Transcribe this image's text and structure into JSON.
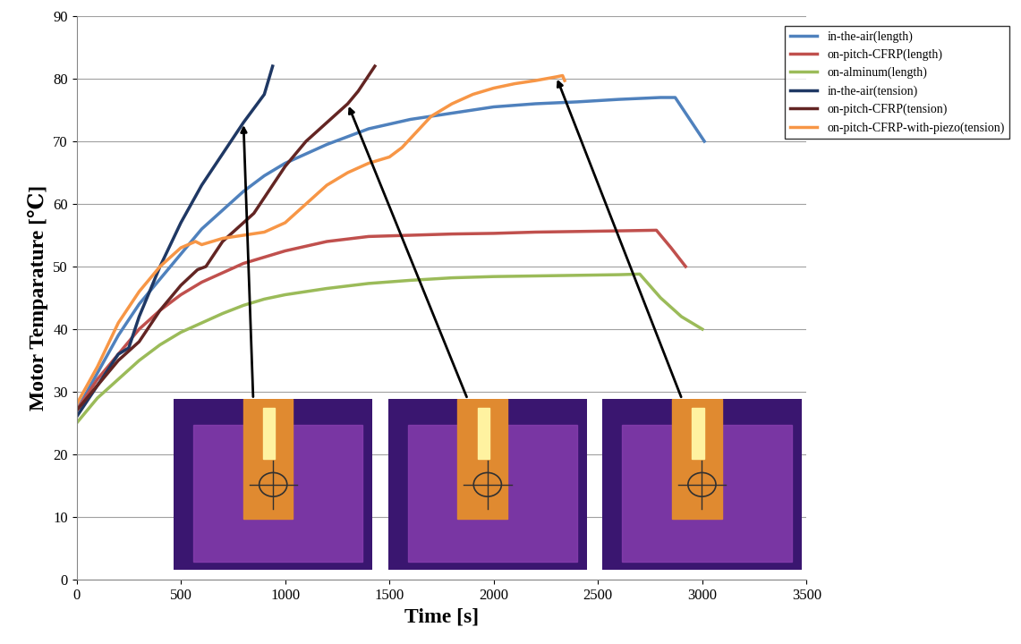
{
  "chart_data": {
    "type": "line",
    "x_label": "Time [s]",
    "y_label": "Motor Temparature [℃]",
    "xlim": [
      0,
      3500
    ],
    "xticks": [
      0,
      500,
      1000,
      1500,
      2000,
      2500,
      3000,
      3500
    ],
    "ylim": [
      0,
      90
    ],
    "yticks": [
      0,
      10,
      20,
      30,
      40,
      50,
      60,
      70,
      80,
      90
    ],
    "grid": true,
    "legend": "upper right",
    "series": [
      {
        "name": "in-the-air(length)",
        "color": "#4f81bd",
        "x": [
          0,
          100,
          200,
          300,
          400,
          500,
          600,
          700,
          800,
          900,
          1000,
          1200,
          1400,
          1600,
          1800,
          2000,
          2200,
          2400,
          2600,
          2800,
          2870,
          2950,
          3010
        ],
        "values": [
          27,
          33,
          39,
          44,
          48,
          52,
          56,
          59,
          62,
          64.5,
          66.5,
          69.5,
          72,
          73.5,
          74.5,
          75.5,
          76,
          76.3,
          76.7,
          77,
          77,
          73,
          70
        ]
      },
      {
        "name": "on-pitch-CFRP(length)",
        "color": "#c0504d",
        "x": [
          0,
          100,
          200,
          300,
          400,
          500,
          600,
          700,
          800,
          900,
          1000,
          1200,
          1400,
          1600,
          1800,
          2000,
          2200,
          2400,
          2600,
          2780,
          2850,
          2920
        ],
        "values": [
          27,
          32,
          36,
          40,
          43,
          45.5,
          47.5,
          49,
          50.5,
          51.5,
          52.5,
          54,
          54.8,
          55,
          55.2,
          55.3,
          55.5,
          55.6,
          55.7,
          55.8,
          53,
          50
        ]
      },
      {
        "name": "on-alminum(length)",
        "color": "#9bbb59",
        "x": [
          0,
          100,
          200,
          300,
          400,
          500,
          600,
          700,
          800,
          900,
          1000,
          1200,
          1400,
          1600,
          1800,
          2000,
          2200,
          2400,
          2600,
          2700,
          2800,
          2900,
          3000
        ],
        "values": [
          25,
          29,
          32,
          35,
          37.5,
          39.5,
          41,
          42.5,
          43.8,
          44.8,
          45.5,
          46.5,
          47.3,
          47.8,
          48.2,
          48.4,
          48.5,
          48.6,
          48.7,
          48.8,
          45,
          42,
          40
        ]
      },
      {
        "name": "in-the-air(tension)",
        "color": "#1f3864",
        "x": [
          0,
          100,
          200,
          250,
          300,
          400,
          500,
          600,
          700,
          800,
          900,
          940
        ],
        "values": [
          26,
          31,
          36,
          37,
          42,
          50,
          57,
          63,
          68,
          73,
          77.5,
          82
        ]
      },
      {
        "name": "on-pitch-CFRP(tension)",
        "color": "#632523",
        "x": [
          0,
          100,
          200,
          300,
          400,
          500,
          580,
          620,
          700,
          800,
          850,
          900,
          1000,
          1100,
          1200,
          1300,
          1350,
          1430
        ],
        "values": [
          27,
          31,
          35,
          38,
          43,
          47,
          49.5,
          50,
          54,
          57,
          58.5,
          61,
          66,
          70,
          73,
          76,
          78,
          82
        ]
      },
      {
        "name": "on-pitch-CFRP-with-piezo(tension)",
        "color": "#f79646",
        "x": [
          0,
          100,
          200,
          300,
          400,
          500,
          570,
          600,
          700,
          800,
          900,
          1000,
          1100,
          1200,
          1300,
          1400,
          1500,
          1560,
          1700,
          1800,
          1900,
          2000,
          2100,
          2200,
          2300,
          2330,
          2340
        ],
        "values": [
          28,
          34,
          41,
          46,
          50,
          53,
          54,
          53.5,
          54.5,
          55,
          55.5,
          57,
          60,
          63,
          65,
          66.5,
          67.5,
          69,
          74,
          76,
          77.5,
          78.5,
          79.2,
          79.7,
          80.3,
          80.5,
          79.7
        ]
      }
    ]
  }
}
